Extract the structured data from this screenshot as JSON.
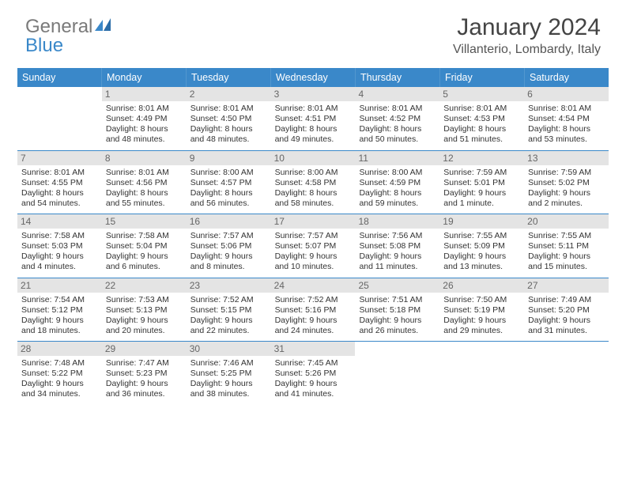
{
  "logo": {
    "word1": "General",
    "word2": "Blue",
    "color1": "#7a7a7a",
    "color2": "#3a88c9"
  },
  "title": "January 2024",
  "location": "Villanterio, Lombardy, Italy",
  "style": {
    "header_bg": "#3a88c9",
    "header_text": "#ffffff",
    "daynum_bg": "#e4e4e4",
    "daynum_text": "#666666",
    "divider": "#3a88c9",
    "body_text": "#333333",
    "title_fontsize": 30,
    "location_fontsize": 16,
    "dow_fontsize": 12.5,
    "detail_fontsize": 10.5
  },
  "days_of_week": [
    "Sunday",
    "Monday",
    "Tuesday",
    "Wednesday",
    "Thursday",
    "Friday",
    "Saturday"
  ],
  "weeks": [
    [
      null,
      {
        "n": "1",
        "sunrise": "8:01 AM",
        "sunset": "4:49 PM",
        "daylight": "8 hours and 48 minutes."
      },
      {
        "n": "2",
        "sunrise": "8:01 AM",
        "sunset": "4:50 PM",
        "daylight": "8 hours and 48 minutes."
      },
      {
        "n": "3",
        "sunrise": "8:01 AM",
        "sunset": "4:51 PM",
        "daylight": "8 hours and 49 minutes."
      },
      {
        "n": "4",
        "sunrise": "8:01 AM",
        "sunset": "4:52 PM",
        "daylight": "8 hours and 50 minutes."
      },
      {
        "n": "5",
        "sunrise": "8:01 AM",
        "sunset": "4:53 PM",
        "daylight": "8 hours and 51 minutes."
      },
      {
        "n": "6",
        "sunrise": "8:01 AM",
        "sunset": "4:54 PM",
        "daylight": "8 hours and 53 minutes."
      }
    ],
    [
      {
        "n": "7",
        "sunrise": "8:01 AM",
        "sunset": "4:55 PM",
        "daylight": "8 hours and 54 minutes."
      },
      {
        "n": "8",
        "sunrise": "8:01 AM",
        "sunset": "4:56 PM",
        "daylight": "8 hours and 55 minutes."
      },
      {
        "n": "9",
        "sunrise": "8:00 AM",
        "sunset": "4:57 PM",
        "daylight": "8 hours and 56 minutes."
      },
      {
        "n": "10",
        "sunrise": "8:00 AM",
        "sunset": "4:58 PM",
        "daylight": "8 hours and 58 minutes."
      },
      {
        "n": "11",
        "sunrise": "8:00 AM",
        "sunset": "4:59 PM",
        "daylight": "8 hours and 59 minutes."
      },
      {
        "n": "12",
        "sunrise": "7:59 AM",
        "sunset": "5:01 PM",
        "daylight": "9 hours and 1 minute."
      },
      {
        "n": "13",
        "sunrise": "7:59 AM",
        "sunset": "5:02 PM",
        "daylight": "9 hours and 2 minutes."
      }
    ],
    [
      {
        "n": "14",
        "sunrise": "7:58 AM",
        "sunset": "5:03 PM",
        "daylight": "9 hours and 4 minutes."
      },
      {
        "n": "15",
        "sunrise": "7:58 AM",
        "sunset": "5:04 PM",
        "daylight": "9 hours and 6 minutes."
      },
      {
        "n": "16",
        "sunrise": "7:57 AM",
        "sunset": "5:06 PM",
        "daylight": "9 hours and 8 minutes."
      },
      {
        "n": "17",
        "sunrise": "7:57 AM",
        "sunset": "5:07 PM",
        "daylight": "9 hours and 10 minutes."
      },
      {
        "n": "18",
        "sunrise": "7:56 AM",
        "sunset": "5:08 PM",
        "daylight": "9 hours and 11 minutes."
      },
      {
        "n": "19",
        "sunrise": "7:55 AM",
        "sunset": "5:09 PM",
        "daylight": "9 hours and 13 minutes."
      },
      {
        "n": "20",
        "sunrise": "7:55 AM",
        "sunset": "5:11 PM",
        "daylight": "9 hours and 15 minutes."
      }
    ],
    [
      {
        "n": "21",
        "sunrise": "7:54 AM",
        "sunset": "5:12 PM",
        "daylight": "9 hours and 18 minutes."
      },
      {
        "n": "22",
        "sunrise": "7:53 AM",
        "sunset": "5:13 PM",
        "daylight": "9 hours and 20 minutes."
      },
      {
        "n": "23",
        "sunrise": "7:52 AM",
        "sunset": "5:15 PM",
        "daylight": "9 hours and 22 minutes."
      },
      {
        "n": "24",
        "sunrise": "7:52 AM",
        "sunset": "5:16 PM",
        "daylight": "9 hours and 24 minutes."
      },
      {
        "n": "25",
        "sunrise": "7:51 AM",
        "sunset": "5:18 PM",
        "daylight": "9 hours and 26 minutes."
      },
      {
        "n": "26",
        "sunrise": "7:50 AM",
        "sunset": "5:19 PM",
        "daylight": "9 hours and 29 minutes."
      },
      {
        "n": "27",
        "sunrise": "7:49 AM",
        "sunset": "5:20 PM",
        "daylight": "9 hours and 31 minutes."
      }
    ],
    [
      {
        "n": "28",
        "sunrise": "7:48 AM",
        "sunset": "5:22 PM",
        "daylight": "9 hours and 34 minutes."
      },
      {
        "n": "29",
        "sunrise": "7:47 AM",
        "sunset": "5:23 PM",
        "daylight": "9 hours and 36 minutes."
      },
      {
        "n": "30",
        "sunrise": "7:46 AM",
        "sunset": "5:25 PM",
        "daylight": "9 hours and 38 minutes."
      },
      {
        "n": "31",
        "sunrise": "7:45 AM",
        "sunset": "5:26 PM",
        "daylight": "9 hours and 41 minutes."
      },
      null,
      null,
      null
    ]
  ],
  "labels": {
    "sunrise": "Sunrise:",
    "sunset": "Sunset:",
    "daylight": "Daylight:"
  }
}
